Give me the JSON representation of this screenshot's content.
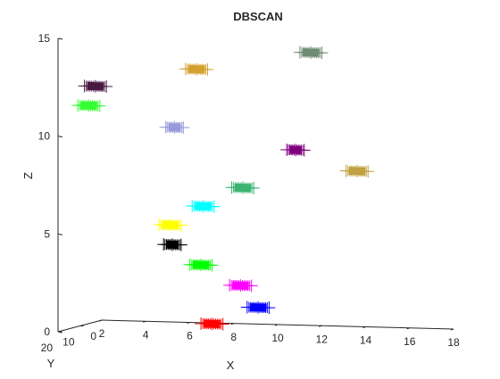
{
  "chart_data": {
    "type": "scatter",
    "projection": "3d",
    "title": "DBSCAN",
    "xlabel": "X",
    "ylabel": "Y",
    "zlabel": "Z",
    "xlim": [
      2,
      18
    ],
    "ylim": [
      0,
      20
    ],
    "zlim": [
      0,
      15
    ],
    "xticks": [
      "2",
      "4",
      "6",
      "8",
      "10",
      "12",
      "14",
      "16",
      "18"
    ],
    "yticks": [
      "0",
      "10",
      "20"
    ],
    "zticks": [
      "0",
      "5",
      "10",
      "15"
    ],
    "marker": "+",
    "grid": false,
    "series": [
      {
        "color": "#ff0000",
        "x": [
          8.5,
          9.0,
          9.5
        ],
        "y": [
          0,
          0,
          0
        ],
        "z": [
          0.6,
          0.6,
          0.6
        ]
      },
      {
        "color": "#0000ff",
        "x": [
          10.6,
          11.1,
          11.6
        ],
        "y": [
          0,
          0,
          0
        ],
        "z": [
          1.5,
          1.5,
          1.5
        ]
      },
      {
        "color": "#ff00ff",
        "x": [
          9.8,
          10.3,
          10.8
        ],
        "y": [
          0,
          0,
          0
        ],
        "z": [
          2.6,
          2.6,
          2.6
        ]
      },
      {
        "color": "#00ff00",
        "x": [
          8.0,
          8.5,
          9.0
        ],
        "y": [
          0,
          0,
          0
        ],
        "z": [
          3.6,
          3.6,
          3.6
        ]
      },
      {
        "color": "#000000",
        "x": [
          6.8,
          7.2,
          7.6
        ],
        "y": [
          0,
          0,
          0
        ],
        "z": [
          4.6,
          4.6,
          4.6
        ]
      },
      {
        "color": "#ffff00",
        "x": [
          6.6,
          7.1,
          7.6
        ],
        "y": [
          0,
          0,
          0
        ],
        "z": [
          5.6,
          5.6,
          5.6
        ]
      },
      {
        "color": "#00ffff",
        "x": [
          8.1,
          8.6,
          9.1
        ],
        "y": [
          0,
          0,
          0
        ],
        "z": [
          6.6,
          6.6,
          6.6
        ]
      },
      {
        "color": "#3cb371",
        "x": [
          9.9,
          10.4,
          10.9
        ],
        "y": [
          0,
          0,
          0
        ],
        "z": [
          7.6,
          7.6,
          7.6
        ]
      },
      {
        "color": "#c0a040",
        "x": [
          15.1,
          15.6,
          16.1
        ],
        "y": [
          0,
          0,
          0
        ],
        "z": [
          8.6,
          8.6,
          8.6
        ]
      },
      {
        "color": "#800080",
        "x": [
          12.4,
          12.8,
          13.2
        ],
        "y": [
          0,
          0,
          0
        ],
        "z": [
          9.6,
          9.6,
          9.6
        ]
      },
      {
        "color": "#9999dd",
        "x": [
          6.9,
          7.3,
          7.7
        ],
        "y": [
          0,
          0,
          0
        ],
        "z": [
          10.6,
          10.6,
          10.6
        ]
      },
      {
        "color": "#33ff33",
        "x": [
          2.9,
          3.4,
          3.9
        ],
        "y": [
          0,
          0,
          0
        ],
        "z": [
          11.6,
          11.6,
          11.6
        ]
      },
      {
        "color": "#4a1942",
        "x": [
          3.2,
          3.7,
          4.2
        ],
        "y": [
          0,
          0,
          0
        ],
        "z": [
          12.6,
          12.6,
          12.6
        ]
      },
      {
        "color": "#d4a030",
        "x": [
          7.8,
          8.3,
          8.8
        ],
        "y": [
          0,
          0,
          0
        ],
        "z": [
          13.6,
          13.6,
          13.6
        ]
      },
      {
        "color": "#6e8b74",
        "x": [
          13.0,
          13.5,
          14.0
        ],
        "y": [
          0,
          0,
          0
        ],
        "z": [
          14.6,
          14.6,
          14.6
        ]
      }
    ]
  }
}
